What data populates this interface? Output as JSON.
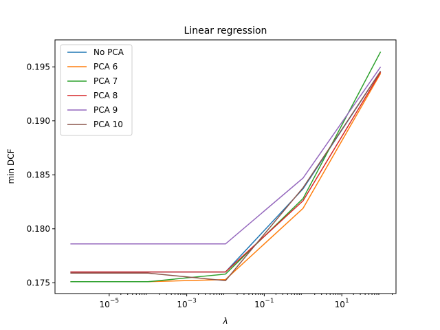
{
  "chart_data": {
    "type": "line",
    "title": "Linear regression",
    "xlabel": "λ",
    "ylabel": "min DCF",
    "x_scale": "log",
    "x": [
      1e-06,
      0.0001,
      0.01,
      1,
      100
    ],
    "xlim": [
      4e-07,
      250
    ],
    "ylim": [
      0.174,
      0.1975
    ],
    "x_ticks": [
      {
        "value": 1e-05,
        "base": "10",
        "exp": "−5"
      },
      {
        "value": 0.001,
        "base": "10",
        "exp": "−3"
      },
      {
        "value": 0.1,
        "base": "10",
        "exp": "−1"
      },
      {
        "value": 10,
        "base": "10",
        "exp": "1"
      }
    ],
    "y_ticks": [
      {
        "value": 0.175,
        "label": "0.175"
      },
      {
        "value": 0.18,
        "label": "0.180"
      },
      {
        "value": 0.185,
        "label": "0.185"
      },
      {
        "value": 0.19,
        "label": "0.190"
      },
      {
        "value": 0.195,
        "label": "0.195"
      }
    ],
    "grid": false,
    "legend_position": "top-left",
    "series": [
      {
        "name": "No PCA",
        "color": "#1f77b4",
        "values": [
          0.176,
          0.176,
          0.176,
          0.1837,
          0.1946
        ]
      },
      {
        "name": "PCA 6",
        "color": "#ff7f0e",
        "values": [
          0.1751,
          0.1751,
          0.1753,
          0.1819,
          0.1944
        ]
      },
      {
        "name": "PCA 7",
        "color": "#2ca02c",
        "values": [
          0.1751,
          0.1751,
          0.1758,
          0.1828,
          0.1964
        ]
      },
      {
        "name": "PCA 8",
        "color": "#d62728",
        "values": [
          0.176,
          0.176,
          0.176,
          0.1826,
          0.1945
        ]
      },
      {
        "name": "PCA 9",
        "color": "#9467bd",
        "values": [
          0.1786,
          0.1786,
          0.1786,
          0.1847,
          0.195
        ]
      },
      {
        "name": "PCA 10",
        "color": "#8c564b",
        "values": [
          0.1759,
          0.1759,
          0.1752,
          0.1838,
          0.1946
        ]
      }
    ]
  }
}
